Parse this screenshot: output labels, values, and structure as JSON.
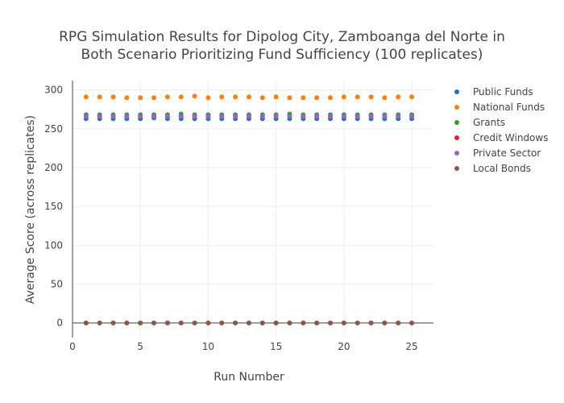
{
  "chart_data": {
    "type": "scatter",
    "title": [
      "RPG Simulation Results for Dipolog City, Zamboanga del Norte in",
      "Both Scenario Prioritizing Fund Sufficiency (100 replicates)"
    ],
    "xlabel": "Run Number",
    "ylabel": "Average Score (across replicates)",
    "xlim": [
      0,
      26.6
    ],
    "ylim": [
      -19,
      312
    ],
    "xticks": [
      0,
      5,
      10,
      15,
      20,
      25
    ],
    "yticks": [
      0,
      50,
      100,
      150,
      200,
      250,
      300
    ],
    "grid": true,
    "legend_position": "top-right",
    "x": [
      1,
      2,
      3,
      4,
      5,
      6,
      7,
      8,
      9,
      10,
      11,
      12,
      13,
      14,
      15,
      16,
      17,
      18,
      19,
      20,
      21,
      22,
      23,
      24,
      25
    ],
    "series": [
      {
        "name": "Public Funds",
        "color": "#1f77b4",
        "values": [
          263,
          263,
          263,
          263,
          263,
          264,
          263,
          263,
          263,
          263,
          263,
          263,
          263,
          263,
          263,
          263,
          263,
          263,
          263,
          263,
          263,
          263,
          263,
          263,
          263
        ]
      },
      {
        "name": "National Funds",
        "color": "#ff7f0e",
        "values": [
          291,
          291,
          291,
          290,
          290,
          290,
          291,
          291,
          292,
          290,
          291,
          291,
          291,
          290,
          291,
          290,
          290,
          290,
          290,
          291,
          291,
          291,
          290,
          291,
          291
        ]
      },
      {
        "name": "Grants",
        "color": "#2ca02c",
        "values": [
          268,
          268,
          268,
          268,
          268,
          268,
          268,
          269,
          268,
          268,
          268,
          268,
          268,
          268,
          268,
          269,
          268,
          268,
          268,
          268,
          268,
          268,
          268,
          268,
          268
        ]
      },
      {
        "name": "Credit Windows",
        "color": "#d62728",
        "values": [
          0,
          0,
          0,
          0,
          0,
          0,
          0,
          0,
          0,
          0,
          0,
          0,
          0,
          0,
          0,
          0,
          0,
          0,
          0,
          0,
          0,
          0,
          0,
          0,
          0
        ]
      },
      {
        "name": "Private Sector",
        "color": "#9467bd",
        "values": [
          266,
          266,
          266,
          266,
          266,
          266,
          266,
          266,
          266,
          266,
          266,
          266,
          266,
          266,
          266,
          266,
          266,
          266,
          266,
          266,
          266,
          266,
          266,
          266,
          266
        ]
      },
      {
        "name": "Local Bonds",
        "color": "#8c564b",
        "values": [
          0,
          0,
          0,
          0,
          0,
          0,
          0,
          0,
          0,
          0,
          0,
          0,
          0,
          0,
          0,
          0,
          0,
          0,
          0,
          0,
          0,
          0,
          0,
          0,
          0
        ]
      }
    ]
  }
}
